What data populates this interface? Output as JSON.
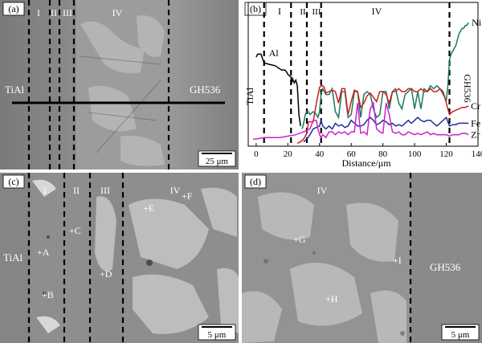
{
  "panels": {
    "a": {
      "tag": "(a)",
      "zones": [
        "I",
        "II",
        "III",
        "IV"
      ],
      "left_material": "TiAl",
      "right_material": "GH536",
      "scale_bar": "25 μm"
    },
    "b": {
      "tag": "(b)",
      "zones": [
        "I",
        "II",
        "III",
        "IV"
      ],
      "rotated_labels": [
        "TiAl",
        "GH536"
      ]
    },
    "c": {
      "tag": "(c)",
      "zones": [
        "I",
        "II",
        "III",
        "IV"
      ],
      "material": "TiAl",
      "points": [
        "+A",
        "+B",
        "+C",
        "+D",
        "+E",
        "+F"
      ],
      "scale_bar": "5 μm"
    },
    "d": {
      "tag": "(d)",
      "zone": "IV",
      "material": "GH536",
      "points": [
        "+G",
        "+H",
        "+I"
      ],
      "scale_bar": "5 μm"
    }
  },
  "chart_data": {
    "type": "line",
    "xlabel": "Distance/μm",
    "ylabel": "",
    "xlim": [
      -5,
      140
    ],
    "ylim": [
      0,
      1
    ],
    "x_ticks": [
      0,
      20,
      40,
      60,
      80,
      100,
      120,
      140
    ],
    "zone_boundaries": [
      5,
      22,
      32,
      41,
      122
    ],
    "grid": false,
    "series": [
      {
        "name": "Al",
        "color": "#000000",
        "x": [
          0,
          1,
          3,
          5,
          8,
          12,
          16,
          18,
          19,
          20,
          21,
          22,
          22.5,
          23,
          24,
          25,
          26,
          27,
          28
        ],
        "y": [
          0.62,
          0.64,
          0.64,
          0.58,
          0.57,
          0.56,
          0.53,
          0.53,
          0.52,
          0.5,
          0.49,
          0.48,
          0.44,
          0.47,
          0.44,
          0.46,
          0.42,
          0.22,
          0.14
        ]
      },
      {
        "name": "Ni",
        "color": "#1a7a5e",
        "x": [
          29,
          30,
          31,
          32,
          33,
          34,
          36,
          38,
          39,
          40,
          41,
          42,
          44,
          46,
          48,
          50,
          52,
          54,
          56,
          58,
          60,
          62,
          64,
          66,
          68,
          70,
          72,
          74,
          76,
          78,
          80,
          82,
          84,
          86,
          88,
          90,
          92,
          94,
          96,
          98,
          100,
          102,
          104,
          106,
          108,
          110,
          112,
          114,
          116,
          118,
          120,
          121,
          122,
          123,
          124,
          125,
          126,
          127,
          128,
          129,
          130,
          131,
          132,
          133,
          134
        ],
        "y": [
          0.12,
          0.16,
          0.22,
          0.24,
          0.24,
          0.22,
          0.24,
          0.22,
          0.2,
          0.24,
          0.36,
          0.4,
          0.36,
          0.36,
          0.4,
          0.24,
          0.2,
          0.38,
          0.38,
          0.2,
          0.22,
          0.38,
          0.38,
          0.2,
          0.36,
          0.38,
          0.36,
          0.26,
          0.2,
          0.22,
          0.38,
          0.38,
          0.26,
          0.38,
          0.4,
          0.3,
          0.26,
          0.36,
          0.38,
          0.4,
          0.26,
          0.38,
          0.26,
          0.4,
          0.38,
          0.42,
          0.4,
          0.42,
          0.4,
          0.36,
          0.32,
          0.42,
          0.6,
          0.64,
          0.66,
          0.68,
          0.7,
          0.74,
          0.78,
          0.8,
          0.82,
          0.82,
          0.84,
          0.84,
          0.86
        ]
      },
      {
        "name": "Cr",
        "color": "#cc1f1f",
        "x": [
          26,
          28,
          30,
          32,
          33,
          34,
          36,
          38,
          40,
          41,
          42,
          43,
          44,
          46,
          48,
          50,
          52,
          54,
          56,
          58,
          60,
          62,
          64,
          66,
          68,
          70,
          72,
          74,
          76,
          78,
          80,
          82,
          84,
          86,
          88,
          90,
          92,
          94,
          96,
          98,
          100,
          102,
          104,
          106,
          108,
          110,
          112,
          114,
          116,
          118,
          120,
          121,
          122,
          124,
          126,
          128,
          130,
          132,
          134
        ],
        "y": [
          0.02,
          0.03,
          0.05,
          0.09,
          0.17,
          0.17,
          0.17,
          0.3,
          0.41,
          0.42,
          0.42,
          0.41,
          0.37,
          0.38,
          0.39,
          0.38,
          0.3,
          0.4,
          0.4,
          0.22,
          0.31,
          0.39,
          0.38,
          0.27,
          0.3,
          0.35,
          0.37,
          0.34,
          0.31,
          0.38,
          0.38,
          0.36,
          0.3,
          0.38,
          0.38,
          0.4,
          0.38,
          0.38,
          0.4,
          0.4,
          0.38,
          0.38,
          0.4,
          0.38,
          0.38,
          0.4,
          0.38,
          0.38,
          0.4,
          0.38,
          0.3,
          0.26,
          0.22,
          0.24,
          0.25,
          0.26,
          0.27,
          0.27,
          0.28
        ]
      },
      {
        "name": "Fe",
        "color": "#1f2f9e",
        "x": [
          30,
          32,
          34,
          36,
          38,
          40,
          41,
          42,
          44,
          46,
          48,
          50,
          52,
          54,
          56,
          58,
          60,
          62,
          64,
          66,
          68,
          70,
          72,
          74,
          76,
          78,
          80,
          82,
          84,
          86,
          88,
          90,
          92,
          94,
          96,
          98,
          100,
          102,
          104,
          106,
          108,
          110,
          112,
          114,
          116,
          118,
          120,
          121,
          122,
          124,
          126,
          128,
          130,
          132,
          134
        ],
        "y": [
          0.03,
          0.05,
          0.08,
          0.12,
          0.13,
          0.14,
          0.18,
          0.14,
          0.12,
          0.14,
          0.12,
          0.16,
          0.14,
          0.15,
          0.13,
          0.14,
          0.18,
          0.16,
          0.14,
          0.14,
          0.15,
          0.18,
          0.2,
          0.18,
          0.15,
          0.16,
          0.18,
          0.17,
          0.15,
          0.16,
          0.14,
          0.15,
          0.14,
          0.16,
          0.18,
          0.16,
          0.18,
          0.2,
          0.18,
          0.17,
          0.18,
          0.18,
          0.16,
          0.14,
          0.16,
          0.18,
          0.2,
          0.17,
          0.14,
          0.15,
          0.15,
          0.16,
          0.16,
          0.16,
          0.16
        ]
      },
      {
        "name": "Zr",
        "color": "#cc22cc",
        "x": [
          -2,
          0,
          5,
          10,
          15,
          20,
          25,
          30,
          34,
          36,
          38,
          39,
          40,
          41,
          42,
          44,
          46,
          48,
          50,
          52,
          54,
          56,
          58,
          60,
          62,
          64,
          66,
          68,
          70,
          72,
          74,
          76,
          78,
          80,
          82,
          84,
          86,
          88,
          90,
          92,
          94,
          96,
          98,
          100,
          102,
          104,
          106,
          108,
          110,
          112,
          114,
          116,
          118,
          120,
          122,
          124,
          126,
          128,
          130,
          132,
          134
        ],
        "y": [
          0.05,
          0.05,
          0.06,
          0.06,
          0.06,
          0.07,
          0.08,
          0.1,
          0.12,
          0.18,
          0.18,
          0.12,
          0.08,
          0.06,
          0.08,
          0.06,
          0.1,
          0.1,
          0.08,
          0.1,
          0.09,
          0.1,
          0.08,
          0.1,
          0.1,
          0.3,
          0.09,
          0.1,
          0.08,
          0.26,
          0.3,
          0.12,
          0.1,
          0.09,
          0.3,
          0.22,
          0.1,
          0.09,
          0.1,
          0.08,
          0.08,
          0.1,
          0.09,
          0.08,
          0.09,
          0.08,
          0.09,
          0.1,
          0.08,
          0.09,
          0.08,
          0.08,
          0.08,
          0.08,
          0.07,
          0.08,
          0.08,
          0.08,
          0.09,
          0.09,
          0.08
        ]
      }
    ]
  }
}
